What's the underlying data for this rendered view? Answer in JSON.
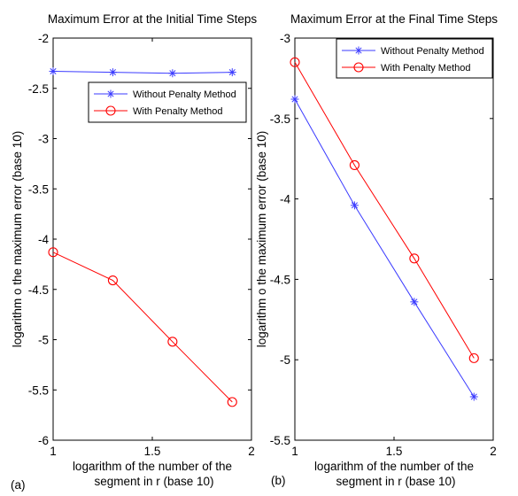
{
  "chart_data": [
    {
      "type": "line",
      "title": "Maximum Error at the Initial Time Steps",
      "panel_label": "(a)",
      "xlabel": [
        "logarithm of the number of the",
        "segment in r (base 10)"
      ],
      "ylabel": "logarithm o the maximum error (base 10)",
      "xlim": [
        1,
        2
      ],
      "ylim": [
        -6,
        -2
      ],
      "xticks": [
        1,
        1.5,
        2
      ],
      "xtick_labels": [
        "1",
        "1.5",
        "2"
      ],
      "yticks": [
        -6,
        -5.5,
        -5,
        -4.5,
        -4,
        -3.5,
        -3,
        -2.5,
        -2
      ],
      "ytick_labels": [
        "-6",
        "-5.5",
        "-5",
        "-4.5",
        "-4",
        "-3.5",
        "-3",
        "-2.5",
        "-2"
      ],
      "grid": false,
      "legend_position": "upper-right",
      "series": [
        {
          "name": "Without Penalty Method",
          "color": "#3b3bff",
          "marker": "asterisk",
          "x": [
            1.0,
            1.301,
            1.602,
            1.903
          ],
          "y": [
            -2.33,
            -2.34,
            -2.35,
            -2.34
          ]
        },
        {
          "name": "With Penalty Method",
          "color": "#ff0000",
          "marker": "circle",
          "x": [
            1.0,
            1.301,
            1.602,
            1.903
          ],
          "y": [
            -4.13,
            -4.41,
            -5.02,
            -5.62
          ]
        }
      ]
    },
    {
      "type": "line",
      "title": "Maximum Error at the Final Time Steps",
      "panel_label": "(b)",
      "xlabel": [
        "logarithm of the number of the",
        "segment in r (base 10)"
      ],
      "ylabel": "logarithm o the maximum error (base 10)",
      "xlim": [
        1,
        2
      ],
      "ylim": [
        -5.5,
        -3
      ],
      "xticks": [
        1,
        1.5,
        2
      ],
      "xtick_labels": [
        "1",
        "1.5",
        "2"
      ],
      "yticks": [
        -5.5,
        -5,
        -4.5,
        -4,
        -3.5,
        -3
      ],
      "ytick_labels": [
        "-5.5",
        "-5",
        "-4.5",
        "-4",
        "-3.5",
        "-3"
      ],
      "grid": false,
      "legend_position": "upper-right",
      "series": [
        {
          "name": "Without Penalty Method",
          "color": "#3b3bff",
          "marker": "asterisk",
          "x": [
            1.0,
            1.301,
            1.602,
            1.903
          ],
          "y": [
            -3.38,
            -4.04,
            -4.64,
            -5.23
          ]
        },
        {
          "name": "With Penalty Method",
          "color": "#ff0000",
          "marker": "circle",
          "x": [
            1.0,
            1.301,
            1.602,
            1.903
          ],
          "y": [
            -3.15,
            -3.79,
            -4.37,
            -4.99
          ]
        }
      ]
    }
  ]
}
